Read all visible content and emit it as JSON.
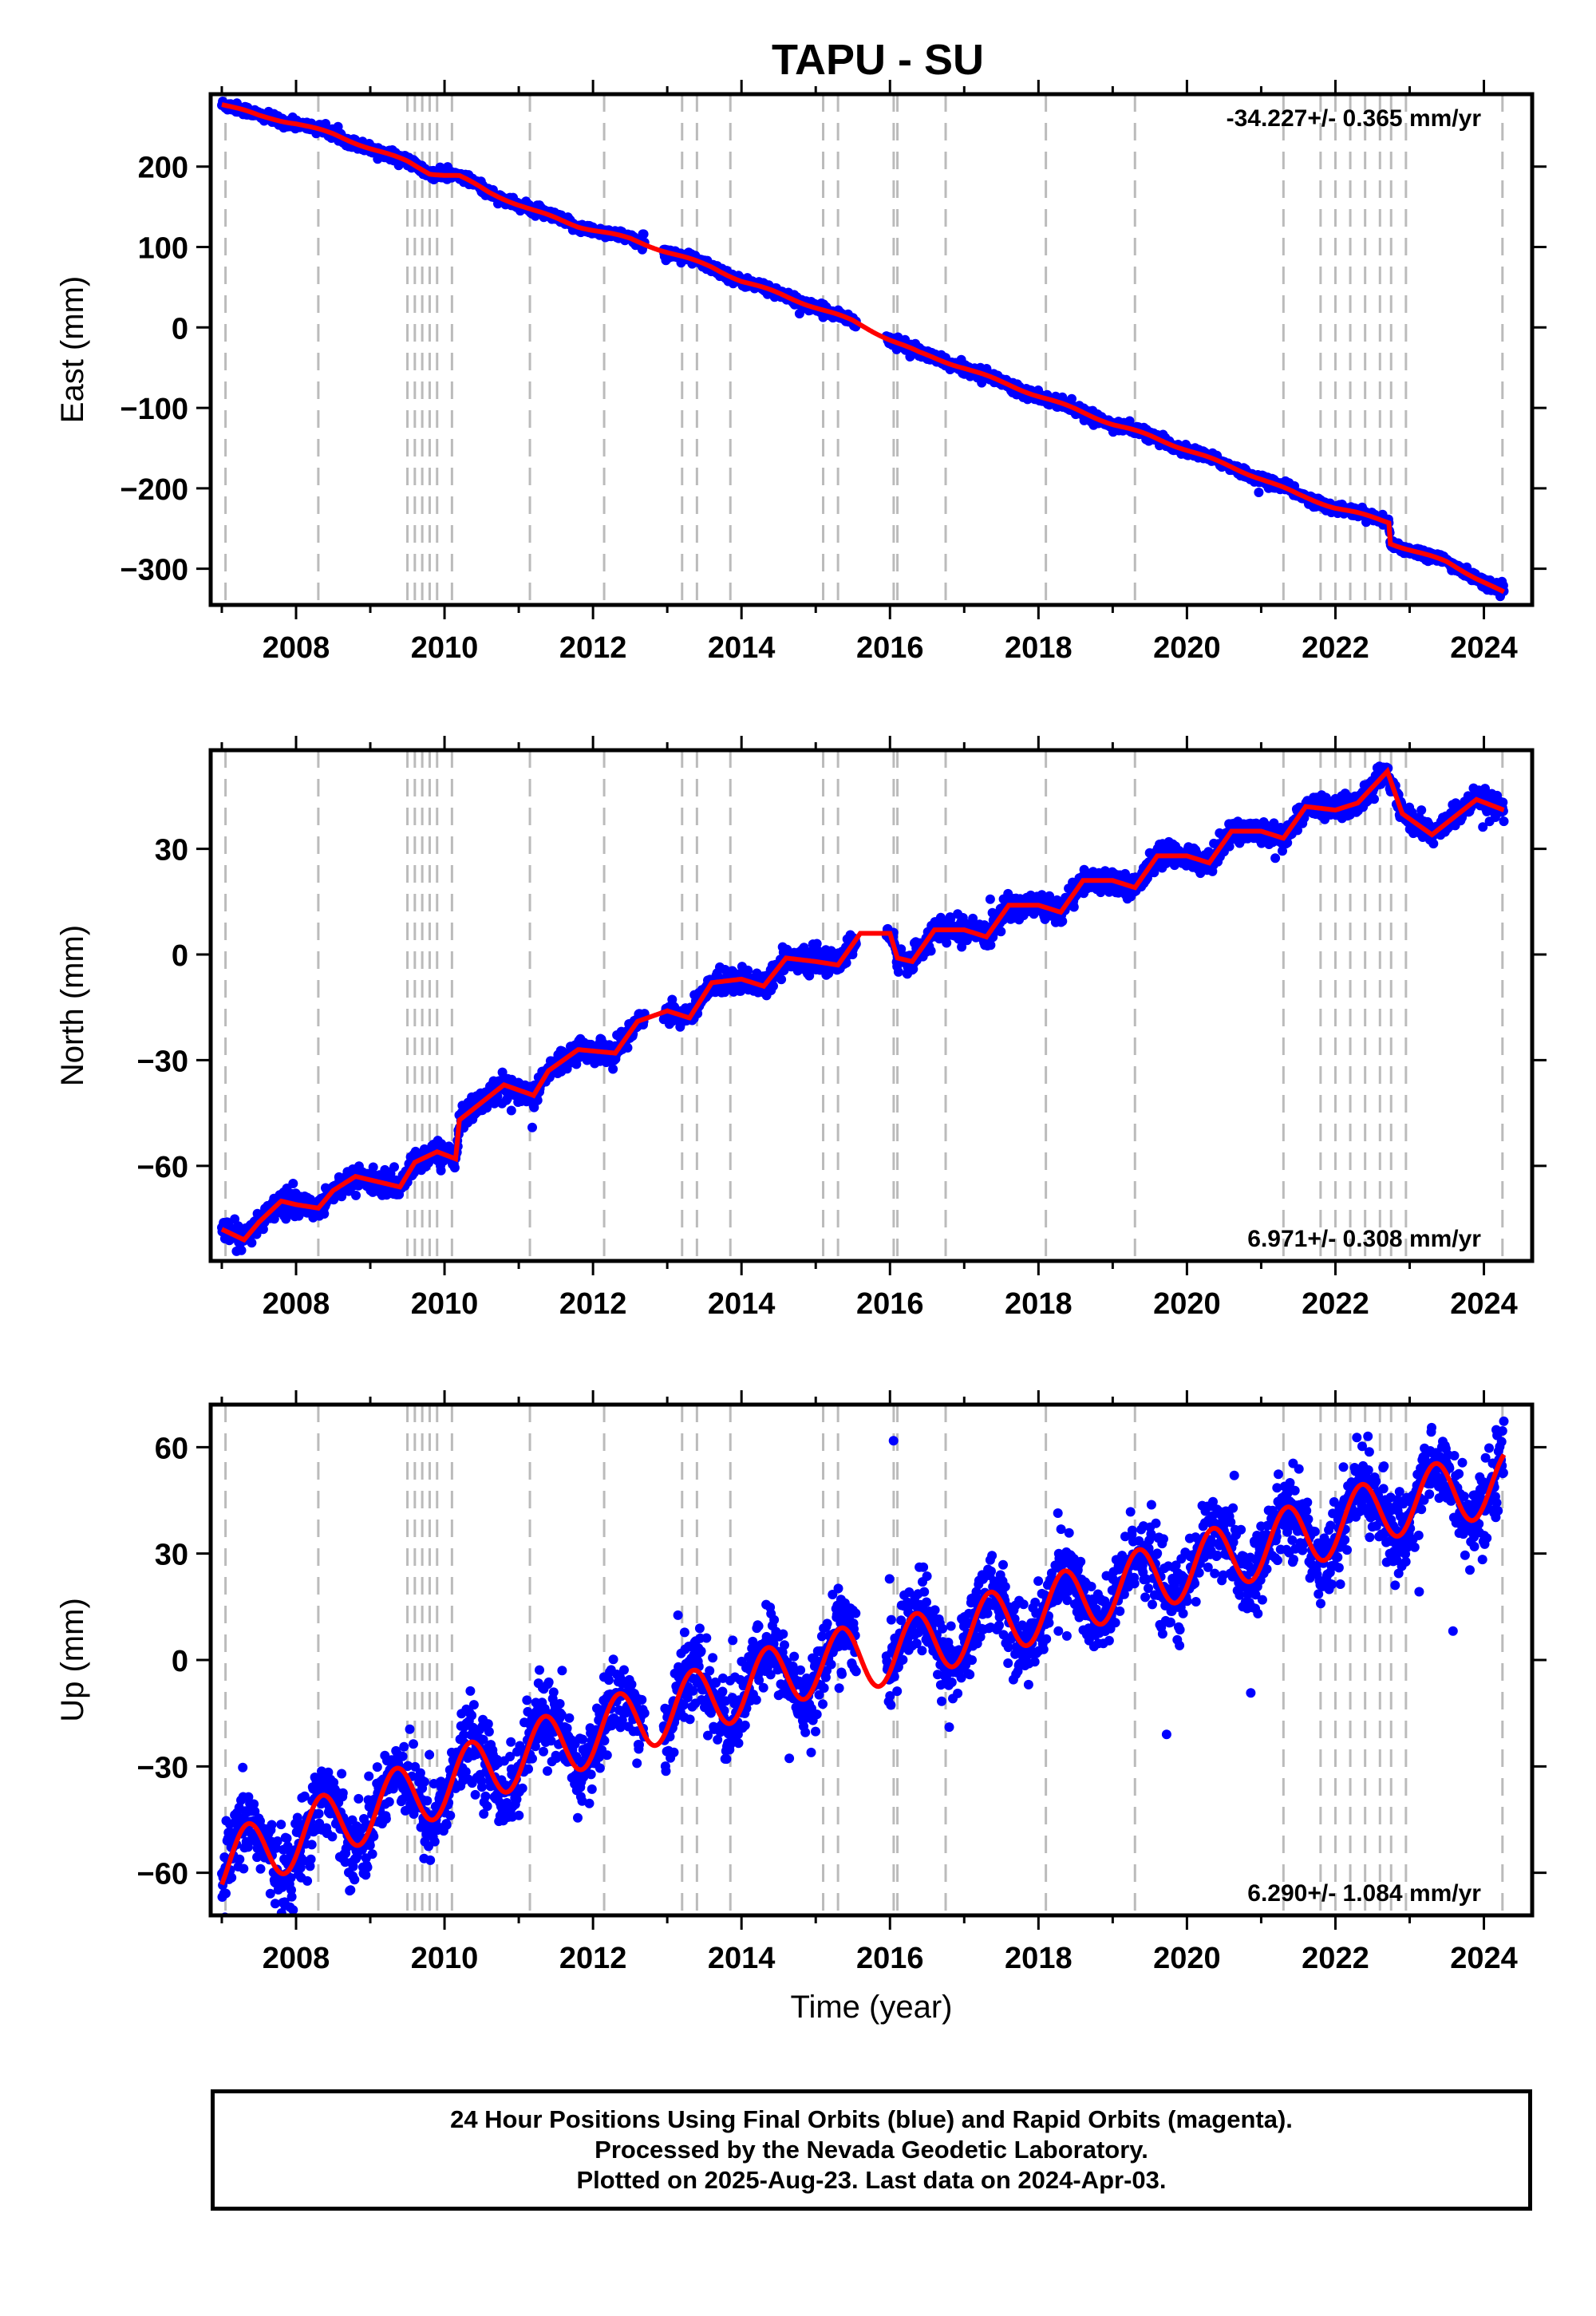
{
  "title": "TAPU - SU",
  "colors": {
    "data": "#0000ff",
    "model": "#ff0000",
    "offset": "#bbbbbb",
    "frame": "#000000"
  },
  "chart_data": [
    {
      "type": "scatter",
      "name": "east",
      "ylabel": "East (mm)",
      "xlabel": "",
      "rate": "-34.227+/- 0.365 mm/yr",
      "rate_position": "top-right",
      "xlim": [
        2006.85,
        2024.65
      ],
      "ylim": [
        -345,
        290
      ],
      "xticks": [
        "2008",
        "2010",
        "2012",
        "2014",
        "2016",
        "2018",
        "2020",
        "2022",
        "2024"
      ],
      "yticks": [
        "200",
        "100",
        "0",
        "−100",
        "−200",
        "−300"
      ],
      "ytick_values": [
        200,
        100,
        0,
        -100,
        -200,
        -300
      ],
      "model": [
        [
          2007.0,
          278
        ],
        [
          2007.5,
          263
        ],
        [
          2008.0,
          254
        ],
        [
          2008.5,
          240
        ],
        [
          2009.0,
          223
        ],
        [
          2009.5,
          206
        ],
        [
          2009.8,
          192
        ],
        [
          2010.2,
          188
        ],
        [
          2010.6,
          168
        ],
        [
          2011.2,
          145
        ],
        [
          2011.8,
          126
        ],
        [
          2012.5,
          110
        ],
        [
          2013.0,
          94
        ],
        [
          2013.6,
          75
        ],
        [
          2014.0,
          58
        ],
        [
          2014.5,
          42
        ],
        [
          2015.0,
          25
        ],
        [
          2015.5,
          8
        ],
        [
          2016.0,
          -15
        ],
        [
          2016.4,
          -32
        ],
        [
          2017.0,
          -50
        ],
        [
          2017.5,
          -68
        ],
        [
          2018.0,
          -85
        ],
        [
          2018.5,
          -102
        ],
        [
          2019.0,
          -120
        ],
        [
          2019.5,
          -135
        ],
        [
          2020.0,
          -152
        ],
        [
          2020.5,
          -170
        ],
        [
          2021.0,
          -188
        ],
        [
          2021.5,
          -208
        ],
        [
          2022.0,
          -224
        ],
        [
          2022.4,
          -234
        ],
        [
          2022.72,
          -242
        ],
        [
          2022.74,
          -268
        ],
        [
          2023.0,
          -276
        ],
        [
          2023.5,
          -292
        ],
        [
          2024.0,
          -316
        ],
        [
          2024.27,
          -330
        ]
      ],
      "noise": 3,
      "seasonal": 1.5
    },
    {
      "type": "scatter",
      "name": "north",
      "ylabel": "North (mm)",
      "xlabel": "",
      "rate": "6.971+/- 0.308 mm/yr",
      "rate_position": "bottom-right",
      "xlim": [
        2006.85,
        2024.65
      ],
      "ylim": [
        -87,
        58
      ],
      "xticks": [
        "2008",
        "2010",
        "2012",
        "2014",
        "2016",
        "2018",
        "2020",
        "2022",
        "2024"
      ],
      "yticks": [
        "30",
        "0",
        "−30",
        "−60"
      ],
      "ytick_values": [
        30,
        0,
        -30,
        -60
      ],
      "model": [
        [
          2007.0,
          -78
        ],
        [
          2007.3,
          -81
        ],
        [
          2007.5,
          -76
        ],
        [
          2007.8,
          -70
        ],
        [
          2008.0,
          -71
        ],
        [
          2008.3,
          -72
        ],
        [
          2008.5,
          -67
        ],
        [
          2008.8,
          -63
        ],
        [
          2009.0,
          -64
        ],
        [
          2009.4,
          -66
        ],
        [
          2009.6,
          -59
        ],
        [
          2009.9,
          -56
        ],
        [
          2010.15,
          -58
        ],
        [
          2010.2,
          -47
        ],
        [
          2010.5,
          -42
        ],
        [
          2010.8,
          -37
        ],
        [
          2011.2,
          -40
        ],
        [
          2011.4,
          -33
        ],
        [
          2011.8,
          -27
        ],
        [
          2012.3,
          -28
        ],
        [
          2012.6,
          -19
        ],
        [
          2013.0,
          -16
        ],
        [
          2013.3,
          -18
        ],
        [
          2013.6,
          -8
        ],
        [
          2014.0,
          -7
        ],
        [
          2014.3,
          -9
        ],
        [
          2014.6,
          -1
        ],
        [
          2015.0,
          -2
        ],
        [
          2015.3,
          -3
        ],
        [
          2015.6,
          6
        ],
        [
          2016.0,
          6
        ],
        [
          2016.1,
          -1
        ],
        [
          2016.3,
          -2
        ],
        [
          2016.6,
          7
        ],
        [
          2017.0,
          7
        ],
        [
          2017.3,
          5
        ],
        [
          2017.6,
          14
        ],
        [
          2018.0,
          14
        ],
        [
          2018.3,
          12
        ],
        [
          2018.6,
          21
        ],
        [
          2019.0,
          21
        ],
        [
          2019.3,
          19
        ],
        [
          2019.6,
          28
        ],
        [
          2020.0,
          28
        ],
        [
          2020.3,
          26
        ],
        [
          2020.6,
          35
        ],
        [
          2021.0,
          35
        ],
        [
          2021.3,
          33
        ],
        [
          2021.6,
          42
        ],
        [
          2022.0,
          41
        ],
        [
          2022.3,
          43
        ],
        [
          2022.7,
          52
        ],
        [
          2022.9,
          40
        ],
        [
          2023.3,
          34
        ],
        [
          2023.6,
          39
        ],
        [
          2023.9,
          44
        ],
        [
          2024.27,
          41
        ]
      ],
      "noise": 1.6,
      "seasonal": 0
    },
    {
      "type": "scatter",
      "name": "up",
      "ylabel": "Up (mm)",
      "xlabel": "Time (year)",
      "rate": "6.290+/- 1.084 mm/yr",
      "rate_position": "bottom-right",
      "xlim": [
        2006.85,
        2024.65
      ],
      "ylim": [
        -72,
        72
      ],
      "xticks": [
        "2008",
        "2010",
        "2012",
        "2014",
        "2016",
        "2018",
        "2020",
        "2022",
        "2024"
      ],
      "yticks": [
        "60",
        "30",
        "0",
        "−30",
        "−60"
      ],
      "ytick_values": [
        60,
        30,
        0,
        -30,
        -60
      ],
      "model": [
        [
          2007.0,
          -58
        ],
        [
          2008.0,
          -50
        ],
        [
          2009.0,
          -42
        ],
        [
          2010.0,
          -35
        ],
        [
          2011.0,
          -27
        ],
        [
          2012.0,
          -21
        ],
        [
          2013.0,
          -14
        ],
        [
          2014.0,
          -8
        ],
        [
          2015.0,
          -1
        ],
        [
          2016.0,
          2
        ],
        [
          2017.0,
          8
        ],
        [
          2018.0,
          14
        ],
        [
          2019.0,
          20
        ],
        [
          2020.0,
          26
        ],
        [
          2021.0,
          32
        ],
        [
          2022.0,
          38
        ],
        [
          2023.0,
          45
        ],
        [
          2024.27,
          50
        ]
      ],
      "noise": 5.5,
      "seasonal": 9
    }
  ],
  "offset_epochs": [
    2007.05,
    2008.3,
    2009.5,
    2009.6,
    2009.7,
    2009.8,
    2009.9,
    2010.1,
    2011.15,
    2012.15,
    2013.2,
    2013.4,
    2013.85,
    2015.1,
    2015.3,
    2016.05,
    2016.1,
    2016.75,
    2018.1,
    2019.3,
    2021.3,
    2021.8,
    2022.0,
    2022.2,
    2022.4,
    2022.6,
    2022.75,
    2022.95,
    2024.25
  ],
  "footer": {
    "line1": "24 Hour Positions Using Final Orbits (blue) and Rapid Orbits (magenta).",
    "line2": "Processed by the Nevada Geodetic Laboratory.",
    "line3": "Plotted on 2025-Aug-23. Last data on 2024-Apr-03."
  }
}
